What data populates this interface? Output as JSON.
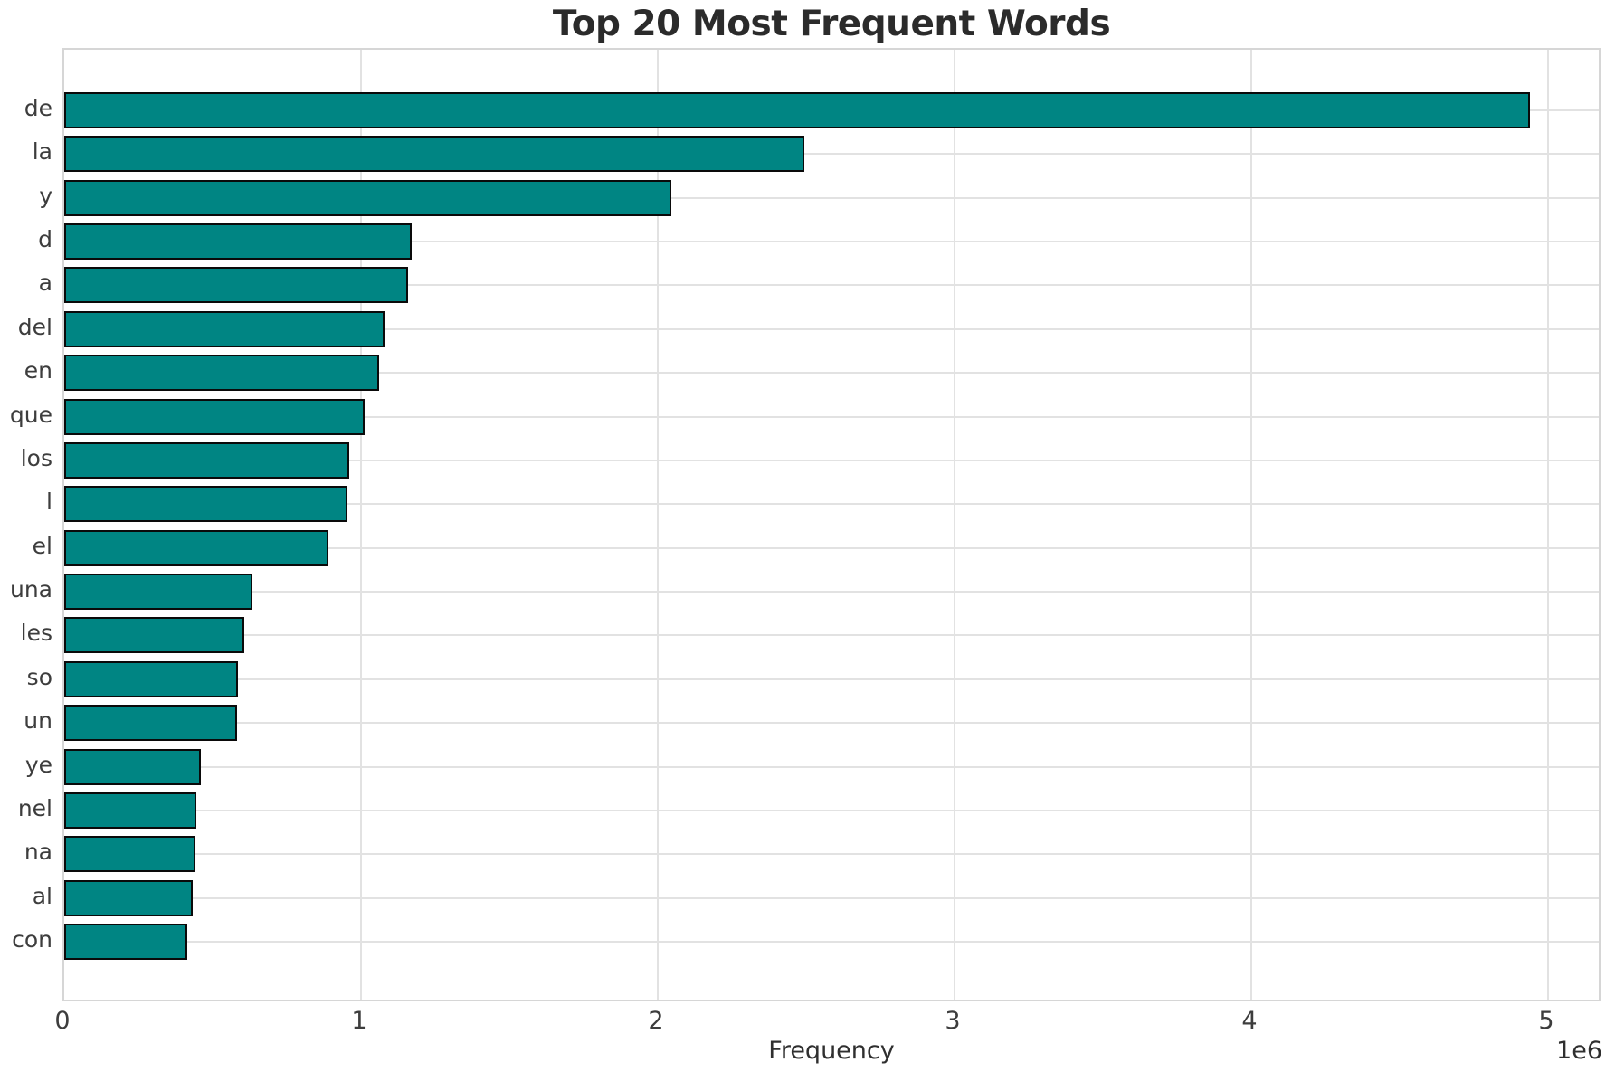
{
  "page": {
    "background": "#ffffff"
  },
  "chart_data": {
    "type": "bar",
    "orientation": "horizontal",
    "title": "Top 20 Most Frequent Words",
    "xlabel": "Frequency",
    "ylabel": "",
    "offset_label": "1e6",
    "categories": [
      "de",
      "la",
      "y",
      "d",
      "a",
      "del",
      "en",
      "que",
      "los",
      "l",
      "el",
      "una",
      "les",
      "so",
      "un",
      "ye",
      "nel",
      "na",
      "al",
      "con"
    ],
    "values": [
      4939000,
      2494000,
      2046000,
      1171000,
      1159000,
      1079000,
      1061000,
      1012000,
      961000,
      954000,
      890000,
      634000,
      607000,
      585000,
      583000,
      460000,
      445000,
      442000,
      433000,
      415000
    ],
    "xlim": [
      0,
      5183000
    ],
    "xticks": [
      0,
      1,
      2,
      3,
      4,
      5
    ],
    "xtick_unit": 1000000,
    "grid": true,
    "legend": null,
    "colors": {
      "bar_fill": "#008583",
      "bar_edge": "#0a0a0a",
      "grid": "#e2e2e2",
      "spine": "#d6d6d6",
      "title_text": "#2b2b2b",
      "tick_text": "#3d3d3d"
    }
  }
}
